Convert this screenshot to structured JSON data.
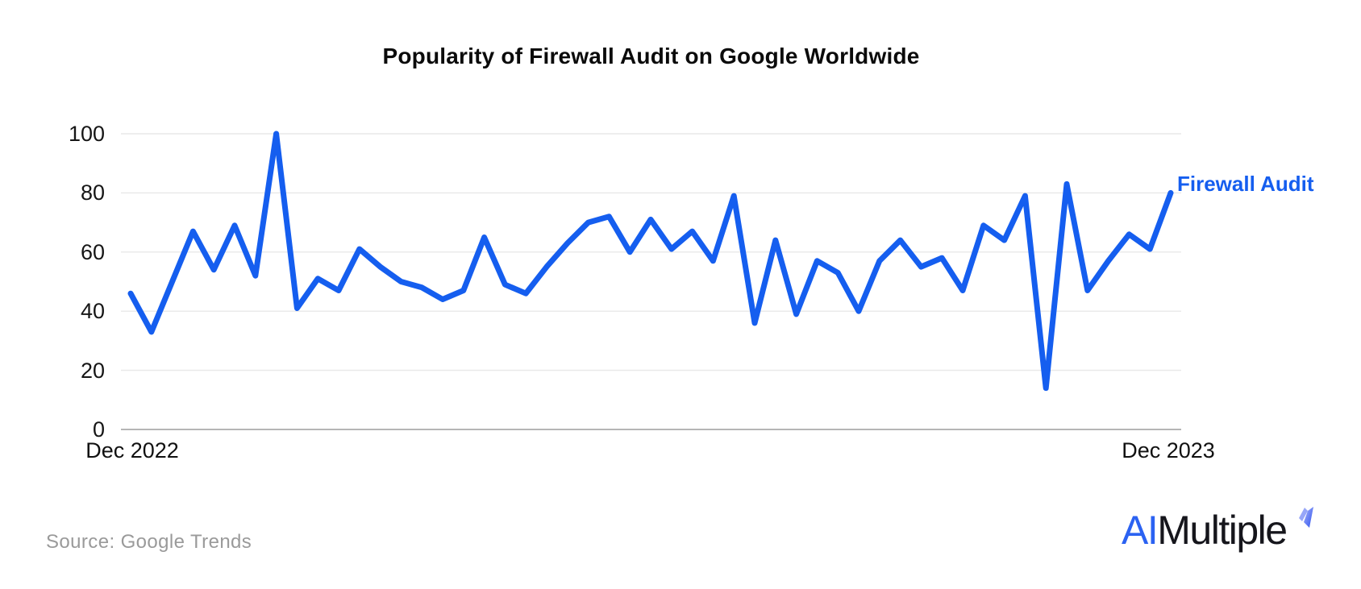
{
  "title": "Popularity of Firewall Audit on Google Worldwide",
  "chart_data": {
    "type": "line",
    "title": "Popularity of Firewall Audit on Google Worldwide",
    "series": [
      {
        "name": "Firewall Audit",
        "color": "#155eef",
        "values": [
          46,
          33,
          50,
          67,
          54,
          69,
          52,
          100,
          41,
          51,
          47,
          61,
          55,
          50,
          48,
          44,
          47,
          65,
          49,
          46,
          55,
          63,
          70,
          72,
          60,
          71,
          61,
          67,
          57,
          79,
          36,
          64,
          39,
          57,
          53,
          40,
          57,
          64,
          55,
          58,
          47,
          69,
          64,
          79,
          14,
          83,
          47,
          57,
          66,
          61,
          80
        ]
      }
    ],
    "x_axis": {
      "start_label": "Dec 2022",
      "end_label": "Dec 2023"
    },
    "y_axis": {
      "ticks": [
        0,
        20,
        40,
        60,
        80,
        100
      ],
      "range": [
        0,
        100
      ]
    },
    "grid": true,
    "legend_position": "end-of-line"
  },
  "annotations": {
    "series_end_label": "Firewall Audit"
  },
  "footer": {
    "source_text": "Source: Google Trends"
  },
  "logo": {
    "prefix": "AI",
    "suffix": "Multiple",
    "mark_icon": "lightning-mark"
  },
  "colors": {
    "line": "#155eef",
    "series_label_text": "#155eef",
    "grid": "#e8e8e8",
    "axis": "#9e9e9e",
    "tick_text": "#161616",
    "title_text": "#0b0b0b",
    "source_text": "#9a9a9a",
    "logo_ai": "#2b62f2",
    "logo_multiple": "#16161c"
  }
}
